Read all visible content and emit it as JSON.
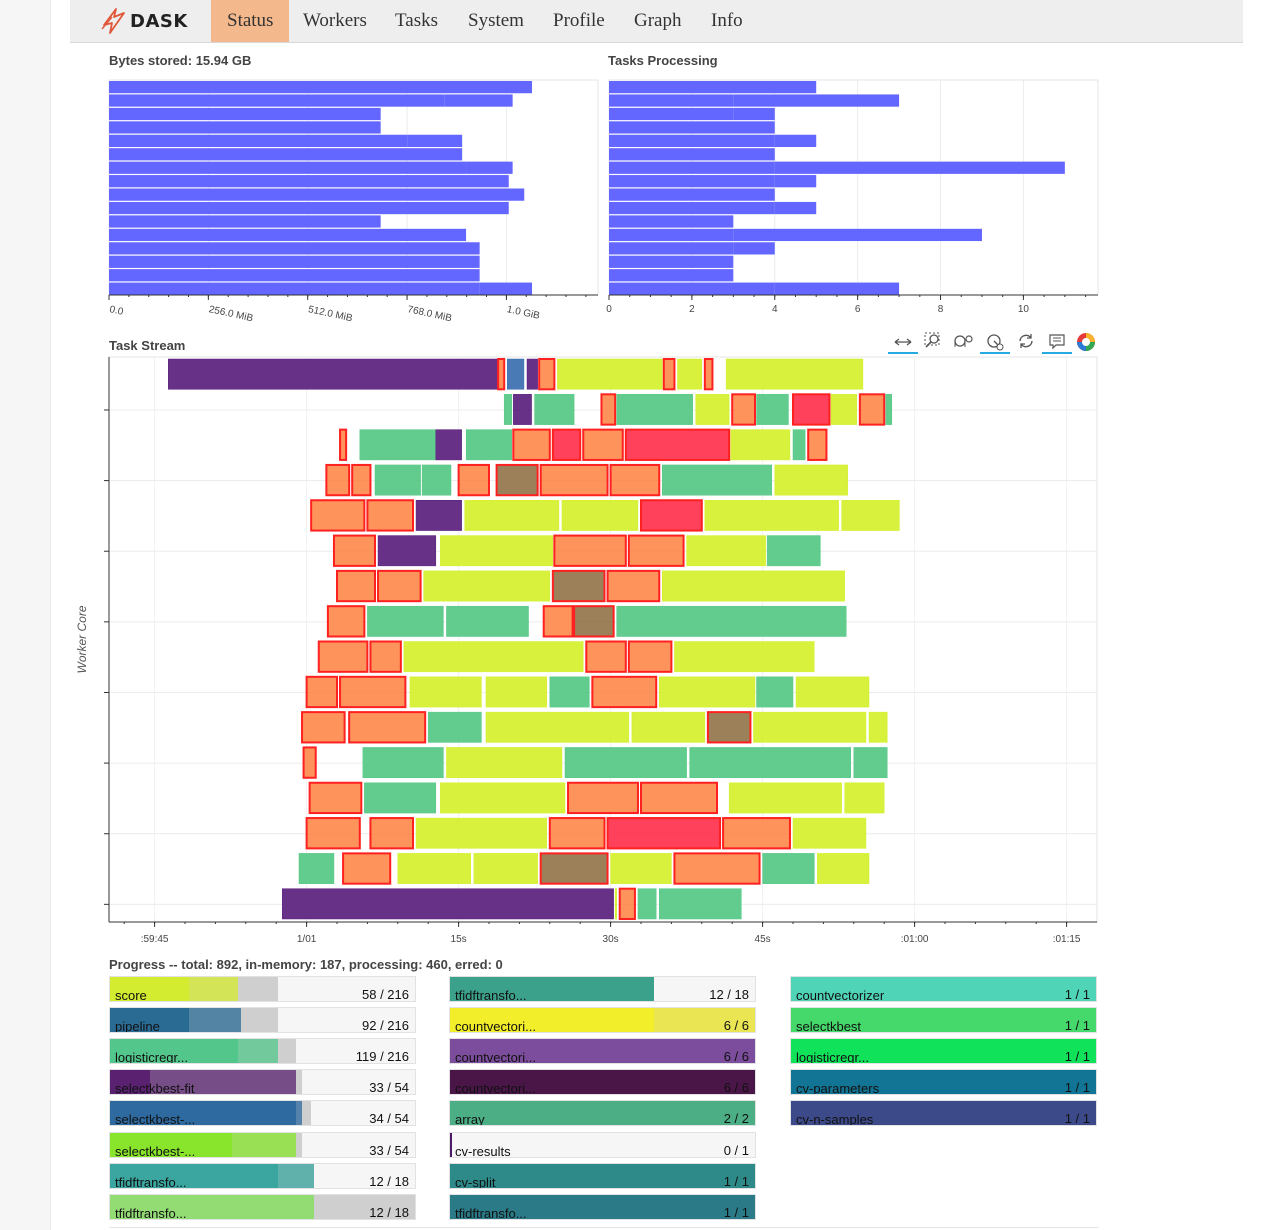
{
  "nav": {
    "brand": "DASK",
    "tabs": [
      {
        "label": "Status",
        "active": true
      },
      {
        "label": "Workers",
        "active": false
      },
      {
        "label": "Tasks",
        "active": false
      },
      {
        "label": "System",
        "active": false
      },
      {
        "label": "Profile",
        "active": false
      },
      {
        "label": "Graph",
        "active": false
      },
      {
        "label": "Info",
        "active": false
      }
    ]
  },
  "bytes_panel": {
    "title": "Bytes stored: 15.94 GB",
    "bar_color": "#6366ff"
  },
  "tasks_panel": {
    "title": "Tasks Processing",
    "bar_color": "#6366ff"
  },
  "task_stream": {
    "title": "Task Stream",
    "ylabel": "Worker Core",
    "x_ticks": [
      ":59:45",
      "1/01",
      "15s",
      "30s",
      "45s",
      ":01:00",
      ":01:15"
    ]
  },
  "toolbar": {
    "tools": [
      {
        "icon": "pan-icon",
        "active": true
      },
      {
        "icon": "box-zoom-icon",
        "active": false
      },
      {
        "icon": "wheel-zoom-icon",
        "active": false
      },
      {
        "icon": "zoom-in-icon",
        "active": true
      },
      {
        "icon": "reset-icon",
        "active": false
      },
      {
        "icon": "hover-icon",
        "active": true
      },
      {
        "icon": "bokeh-logo-icon",
        "active": false
      }
    ]
  },
  "progress": {
    "title": "Progress -- total: 892, in-memory: 187, processing: 460, erred: 0",
    "columns": [
      [
        {
          "name": "score",
          "count": "58 / 216",
          "color": "#d4ec2f",
          "memory": 0.26,
          "done": 0.42,
          "processing": 0.55
        },
        {
          "name": "pipeline",
          "count": "92 / 216",
          "color": "#2a6b94",
          "memory": 0.26,
          "done": 0.43,
          "processing": 0.55
        },
        {
          "name": "logisticregr...",
          "count": "119 / 216",
          "color": "#53c78b",
          "memory": 0.42,
          "done": 0.55,
          "processing": 0.61
        },
        {
          "name": "selectkbest-fit",
          "count": "33 / 54",
          "color": "#5a2170",
          "memory": 0.13,
          "done": 0.61,
          "processing": 0.63
        },
        {
          "name": "selectkbest-...",
          "count": "34 / 54",
          "color": "#2e6aa0",
          "memory": 0.61,
          "done": 0.63,
          "processing": 0.66
        },
        {
          "name": "selectkbest-...",
          "count": "33 / 54",
          "color": "#88e52c",
          "memory": 0.4,
          "done": 0.61,
          "processing": 0.63
        },
        {
          "name": "tfidftransfo...",
          "count": "12 / 18",
          "color": "#3ba69f",
          "memory": 0.55,
          "done": 0.67,
          "processing": 0.67
        },
        {
          "name": "tfidftransfo...",
          "count": "12 / 18",
          "color": "#7fe055",
          "memory": 0.0,
          "done": 0.67,
          "processing": 1.0
        }
      ],
      [
        {
          "name": "tfidftransfo...",
          "count": "12 / 18",
          "color": "#3ba18a",
          "memory": 0.67,
          "done": 0.67,
          "processing": 0.67
        },
        {
          "name": "countvectori...",
          "count": "6 / 6",
          "color": "#f3ee2a",
          "memory": 0.67,
          "done": 1.0,
          "processing": 1.0
        },
        {
          "name": "countvectori...",
          "count": "6 / 6",
          "color": "#7c4d9c",
          "memory": 1.0,
          "done": 1.0,
          "processing": 1.0
        },
        {
          "name": "countvectori...",
          "count": "6 / 6",
          "color": "#4a1648",
          "memory": 1.0,
          "done": 1.0,
          "processing": 1.0
        },
        {
          "name": "array",
          "count": "2 / 2",
          "color": "#4cae85",
          "memory": 1.0,
          "done": 1.0,
          "processing": 1.0
        },
        {
          "name": "cv-results",
          "count": "0 / 1",
          "color": "#4a1a66",
          "memory": 0.0,
          "done": 0.0,
          "processing": 0.0
        },
        {
          "name": "cv-split",
          "count": "1 / 1",
          "color": "#2d8a88",
          "memory": 1.0,
          "done": 1.0,
          "processing": 1.0
        },
        {
          "name": "tfidftransfo...",
          "count": "1 / 1",
          "color": "#2a7a88",
          "memory": 1.0,
          "done": 1.0,
          "processing": 1.0
        }
      ],
      [
        {
          "name": "countvectorizer",
          "count": "1 / 1",
          "color": "#4fd4b7",
          "memory": 1.0,
          "done": 1.0,
          "processing": 1.0
        },
        {
          "name": "selectkbest",
          "count": "1 / 1",
          "color": "#45d86a",
          "memory": 1.0,
          "done": 1.0,
          "processing": 1.0
        },
        {
          "name": "logisticregr...",
          "count": "1 / 1",
          "color": "#10e35a",
          "memory": 1.0,
          "done": 1.0,
          "processing": 1.0
        },
        {
          "name": "cv-parameters",
          "count": "1 / 1",
          "color": "#137595",
          "memory": 1.0,
          "done": 1.0,
          "processing": 1.0
        },
        {
          "name": "cv-n-samples",
          "count": "1 / 1",
          "color": "#3d4a8a",
          "memory": 1.0,
          "done": 1.0,
          "processing": 1.0
        }
      ]
    ]
  },
  "chart_data": [
    {
      "type": "bar",
      "orientation": "horizontal",
      "title": "Bytes stored: 15.94 GB",
      "x_ticks": [
        "0.0",
        "256.0 MiB",
        "512.0 MiB",
        "768.0 MiB",
        "1.0 GiB"
      ],
      "x_unit": "MiB",
      "xlim": [
        0,
        1260
      ],
      "grid": true,
      "stacked": true,
      "series": [
        {
          "values": [
            1090,
            865,
            700,
            700,
            770,
            910,
            920,
            1030,
            1070,
            1030,
            700,
            920,
            955,
            955,
            955,
            955
          ]
        },
        {
          "values": [
            0,
            175,
            0,
            0,
            140,
            0,
            120,
            0,
            0,
            0,
            0,
            0,
            0,
            0,
            0,
            135
          ]
        }
      ]
    },
    {
      "type": "bar",
      "orientation": "horizontal",
      "title": "Tasks Processing",
      "x_ticks": [
        "0",
        "2",
        "4",
        "6",
        "8",
        "10"
      ],
      "xlim": [
        0,
        11.8
      ],
      "grid": true,
      "stacked": true,
      "series": [
        {
          "values": [
            5,
            3,
            3,
            4,
            4,
            4,
            4,
            4,
            4,
            4,
            3,
            3,
            3,
            3,
            3,
            4
          ]
        },
        {
          "values": [
            0,
            4,
            1,
            0,
            1,
            0,
            7,
            1,
            0,
            1,
            0,
            6,
            1,
            0,
            0,
            3
          ]
        }
      ]
    },
    {
      "type": "gantt",
      "title": "Task Stream",
      "ylabel": "Worker Core",
      "x_ticks": [
        ":59:45",
        "1/01",
        "15s",
        "30s",
        "45s",
        ":01:00",
        ":01:15"
      ],
      "xlim": [
        -18,
        47
      ],
      "lanes": 16,
      "tasks": [
        [
          0,
          -14.1,
          7.6,
          "#5a1f7e"
        ],
        [
          0,
          7.6,
          8.0,
          "#ff8040"
        ],
        [
          0,
          8.2,
          9.3,
          "#3a6fb0"
        ],
        [
          0,
          9.5,
          10.2,
          "#5a1f7e"
        ],
        [
          0,
          10.3,
          11.3,
          "#ff8040"
        ],
        [
          0,
          11.5,
          18.4,
          "#d4f02c"
        ],
        [
          0,
          18.5,
          19.2,
          "#ff8040"
        ],
        [
          0,
          19.4,
          21.0,
          "#d4f02c"
        ],
        [
          0,
          21.2,
          21.7,
          "#ff8040"
        ],
        [
          0,
          22.6,
          31.6,
          "#d4f02c"
        ],
        [
          1,
          8.0,
          8.5,
          "#55c885"
        ],
        [
          1,
          8.6,
          9.8,
          "#5a1f7e"
        ],
        [
          1,
          10.0,
          12.6,
          "#55c885"
        ],
        [
          1,
          14.4,
          15.3,
          "#ff8040"
        ],
        [
          1,
          15.4,
          20.4,
          "#55c885"
        ],
        [
          1,
          20.6,
          22.8,
          "#d4f02c"
        ],
        [
          1,
          23.0,
          24.5,
          "#ff8040"
        ],
        [
          1,
          24.6,
          26.7,
          "#55c885"
        ],
        [
          1,
          27.0,
          29.4,
          "#ff2040"
        ],
        [
          1,
          29.5,
          31.2,
          "#d4f02c"
        ],
        [
          1,
          31.4,
          33.0,
          "#ff8040"
        ],
        [
          1,
          33.1,
          33.5,
          "#55c885"
        ],
        [
          2,
          -2.8,
          -2.4,
          "#ff8040"
        ],
        [
          2,
          -1.5,
          3.5,
          "#55c885"
        ],
        [
          2,
          3.5,
          5.2,
          "#5a1f7e"
        ],
        [
          2,
          5.5,
          8.5,
          "#55c885"
        ],
        [
          2,
          8.6,
          11.0,
          "#ff8040"
        ],
        [
          2,
          11.2,
          13.0,
          "#ff2040"
        ],
        [
          2,
          13.2,
          15.8,
          "#ff8040"
        ],
        [
          2,
          16.0,
          22.8,
          "#ff2040"
        ],
        [
          2,
          22.9,
          26.8,
          "#d4f02c"
        ],
        [
          2,
          27.0,
          27.8,
          "#55c885"
        ],
        [
          2,
          28.0,
          29.2,
          "#ff8040"
        ],
        [
          3,
          -3.7,
          -2.2,
          "#ff8040"
        ],
        [
          3,
          -2.0,
          -0.8,
          "#ff8040"
        ],
        [
          3,
          -0.5,
          2.5,
          "#55c885"
        ],
        [
          3,
          2.6,
          4.5,
          "#55c885"
        ],
        [
          3,
          5.0,
          7.0,
          "#ff8040"
        ],
        [
          3,
          7.5,
          10.2,
          "#8b6a3c"
        ],
        [
          3,
          10.4,
          14.8,
          "#ff8040"
        ],
        [
          3,
          15.0,
          18.2,
          "#ff8040"
        ],
        [
          3,
          18.4,
          25.6,
          "#55c885"
        ],
        [
          3,
          25.8,
          30.6,
          "#d4f02c"
        ],
        [
          4,
          -4.7,
          -1.2,
          "#ff8040"
        ],
        [
          4,
          -1.0,
          2.0,
          "#ff8040"
        ],
        [
          4,
          2.2,
          5.2,
          "#5a1f7e"
        ],
        [
          4,
          5.4,
          11.6,
          "#d4f02c"
        ],
        [
          4,
          11.8,
          16.8,
          "#d4f02c"
        ],
        [
          4,
          17.0,
          21.0,
          "#ff2040"
        ],
        [
          4,
          21.2,
          30.0,
          "#d4f02c"
        ],
        [
          4,
          30.2,
          34.0,
          "#d4f02c"
        ],
        [
          5,
          -3.2,
          -0.5,
          "#ff8040"
        ],
        [
          5,
          -0.3,
          3.5,
          "#5a1f7e"
        ],
        [
          5,
          3.8,
          11.2,
          "#d4f02c"
        ],
        [
          5,
          11.3,
          16.0,
          "#ff8040"
        ],
        [
          5,
          16.2,
          19.8,
          "#ff8040"
        ],
        [
          5,
          20.0,
          25.2,
          "#d4f02c"
        ],
        [
          5,
          25.3,
          28.8,
          "#55c885"
        ],
        [
          6,
          -3.0,
          -0.5,
          "#ff8040"
        ],
        [
          6,
          -0.3,
          2.5,
          "#ff8040"
        ],
        [
          6,
          2.7,
          11.0,
          "#d4f02c"
        ],
        [
          6,
          11.2,
          14.6,
          "#8b6a3c"
        ],
        [
          6,
          14.8,
          18.2,
          "#ff8040"
        ],
        [
          6,
          18.4,
          30.4,
          "#d4f02c"
        ],
        [
          7,
          -3.6,
          -1.2,
          "#ff8040"
        ],
        [
          7,
          -1.0,
          4.0,
          "#55c885"
        ],
        [
          7,
          4.2,
          9.6,
          "#55c885"
        ],
        [
          7,
          10.6,
          12.5,
          "#ff8040"
        ],
        [
          7,
          12.6,
          15.2,
          "#8b6a3c"
        ],
        [
          7,
          15.4,
          30.5,
          "#55c885"
        ],
        [
          8,
          -4.2,
          -1.0,
          "#ff8040"
        ],
        [
          8,
          -0.8,
          1.2,
          "#ff8040"
        ],
        [
          8,
          1.4,
          13.2,
          "#d4f02c"
        ],
        [
          8,
          13.4,
          16.0,
          "#ff8040"
        ],
        [
          8,
          16.2,
          19.0,
          "#ff8040"
        ],
        [
          8,
          19.2,
          28.4,
          "#d4f02c"
        ],
        [
          9,
          -5.0,
          -3.0,
          "#ff8040"
        ],
        [
          9,
          -2.8,
          1.5,
          "#ff8040"
        ],
        [
          9,
          1.8,
          6.5,
          "#d4f02c"
        ],
        [
          9,
          6.8,
          10.8,
          "#d4f02c"
        ],
        [
          9,
          11.0,
          13.6,
          "#55c885"
        ],
        [
          9,
          13.8,
          18.0,
          "#ff8040"
        ],
        [
          9,
          18.2,
          24.5,
          "#d4f02c"
        ],
        [
          9,
          24.6,
          27.0,
          "#55c885"
        ],
        [
          9,
          27.2,
          32.0,
          "#d4f02c"
        ],
        [
          10,
          -5.3,
          -2.5,
          "#ff8040"
        ],
        [
          10,
          -2.2,
          2.8,
          "#ff8040"
        ],
        [
          10,
          3.0,
          6.5,
          "#55c885"
        ],
        [
          10,
          6.8,
          16.2,
          "#d4f02c"
        ],
        [
          10,
          16.4,
          21.2,
          "#d4f02c"
        ],
        [
          10,
          21.4,
          24.2,
          "#8b6a3c"
        ],
        [
          10,
          24.4,
          31.8,
          "#d4f02c"
        ],
        [
          10,
          32.0,
          33.2,
          "#d4f02c"
        ],
        [
          11,
          -5.2,
          -4.4,
          "#ff8040"
        ],
        [
          11,
          -1.3,
          4.0,
          "#55c885"
        ],
        [
          11,
          4.2,
          11.8,
          "#d4f02c"
        ],
        [
          11,
          12.0,
          20.0,
          "#55c885"
        ],
        [
          11,
          20.2,
          30.8,
          "#55c885"
        ],
        [
          11,
          31.0,
          33.2,
          "#55c885"
        ],
        [
          12,
          -4.8,
          -1.4,
          "#ff8040"
        ],
        [
          12,
          -1.2,
          3.5,
          "#55c885"
        ],
        [
          12,
          3.8,
          12.0,
          "#d4f02c"
        ],
        [
          12,
          12.2,
          16.8,
          "#ff8040"
        ],
        [
          12,
          17.0,
          22.0,
          "#ff8040"
        ],
        [
          12,
          22.8,
          30.2,
          "#d4f02c"
        ],
        [
          12,
          30.4,
          33.0,
          "#d4f02c"
        ],
        [
          13,
          -5.0,
          -1.5,
          "#ff8040"
        ],
        [
          13,
          -0.8,
          2.0,
          "#ff8040"
        ],
        [
          13,
          2.2,
          10.8,
          "#d4f02c"
        ],
        [
          13,
          11.0,
          14.6,
          "#ff8040"
        ],
        [
          13,
          14.8,
          22.2,
          "#ff2040"
        ],
        [
          13,
          22.4,
          26.8,
          "#ff8040"
        ],
        [
          13,
          27.0,
          31.8,
          "#d4f02c"
        ],
        [
          14,
          -5.5,
          -3.2,
          "#55c885"
        ],
        [
          14,
          -2.6,
          0.5,
          "#ff8040"
        ],
        [
          14,
          1.0,
          5.8,
          "#d4f02c"
        ],
        [
          14,
          6.0,
          10.2,
          "#d4f02c"
        ],
        [
          14,
          10.4,
          14.8,
          "#8b6a3c"
        ],
        [
          14,
          15.0,
          19.0,
          "#d4f02c"
        ],
        [
          14,
          19.2,
          24.8,
          "#ff8040"
        ],
        [
          14,
          25.0,
          28.4,
          "#55c885"
        ],
        [
          14,
          28.6,
          32.0,
          "#d4f02c"
        ],
        [
          15,
          -6.6,
          15.2,
          "#5a1f7e"
        ],
        [
          15,
          15.3,
          15.4,
          "#d4f02c"
        ],
        [
          15,
          15.6,
          16.6,
          "#ff8040"
        ],
        [
          15,
          16.8,
          18.0,
          "#55c885"
        ],
        [
          15,
          18.2,
          23.6,
          "#55c885"
        ]
      ]
    }
  ]
}
